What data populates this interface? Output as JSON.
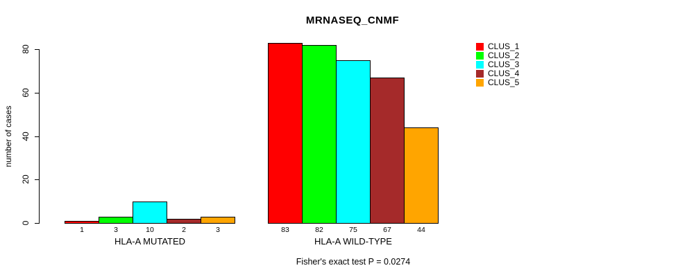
{
  "chart_data": {
    "type": "bar",
    "title": "MRNASEQ_CNMF",
    "xlabel": "",
    "ylabel": "number of cases",
    "ylim": [
      0,
      80
    ],
    "yticks": [
      0,
      20,
      40,
      60,
      80
    ],
    "grid": false,
    "legend_position": "right",
    "annotation": "Fisher's exact test P = 0.0274",
    "categories": [
      "HLA-A MUTATED",
      "HLA-A WILD-TYPE"
    ],
    "series": [
      {
        "name": "CLUS_1",
        "color": "#FF0000",
        "values": [
          1,
          83
        ]
      },
      {
        "name": "CLUS_2",
        "color": "#00FF00",
        "values": [
          3,
          82
        ]
      },
      {
        "name": "CLUS_3",
        "color": "#00FFFF",
        "values": [
          10,
          75
        ]
      },
      {
        "name": "CLUS_4",
        "color": "#A52A2A",
        "values": [
          2,
          67
        ]
      },
      {
        "name": "CLUS_5",
        "color": "#FFA500",
        "values": [
          3,
          44
        ]
      }
    ]
  }
}
